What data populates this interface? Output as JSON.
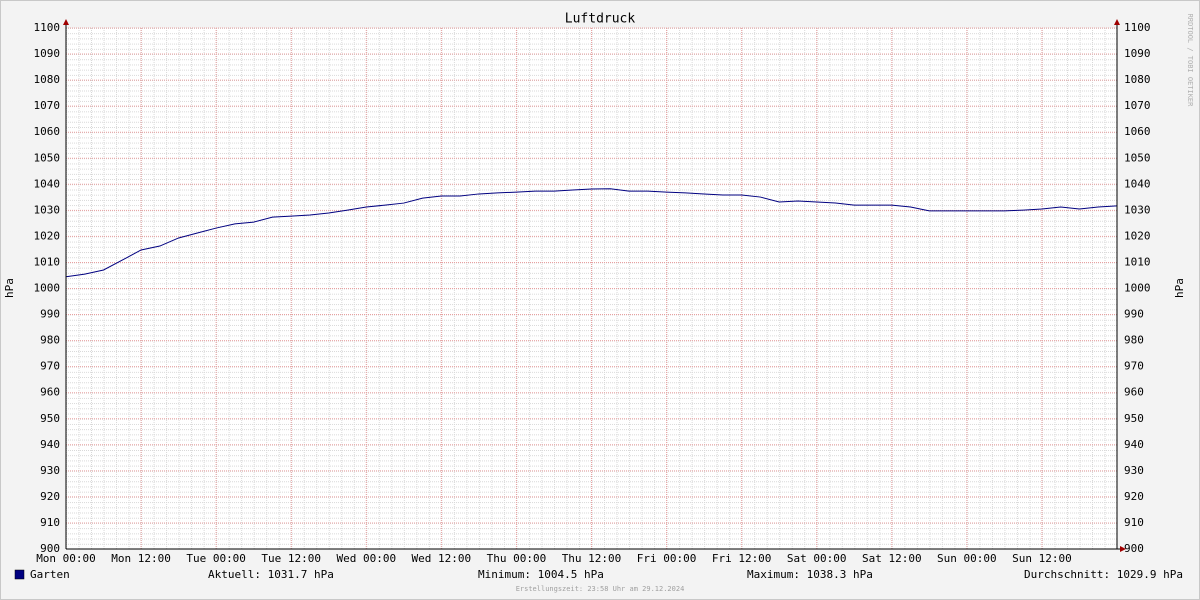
{
  "chart_data": {
    "type": "line",
    "title": "Luftdruck",
    "y_label": "hPa",
    "y2_label": "hPa",
    "x": [
      0,
      3,
      6,
      9,
      12,
      15,
      18,
      21,
      24,
      27,
      30,
      33,
      36,
      39,
      42,
      45,
      48,
      51,
      54,
      57,
      60,
      63,
      66,
      69,
      72,
      75,
      78,
      81,
      84,
      87,
      90,
      93,
      96,
      99,
      102,
      105,
      108,
      111,
      114,
      117,
      120,
      123,
      126,
      129,
      132,
      135,
      138,
      141,
      144,
      147,
      150,
      153,
      156,
      159,
      162,
      165,
      168
    ],
    "series": [
      {
        "name": "Garten",
        "color": "#000080",
        "values": [
          1004.5,
          1005.5,
          1007.1,
          1010.9,
          1014.8,
          1016.3,
          1019.4,
          1021.3,
          1023.2,
          1024.8,
          1025.5,
          1027.4,
          1027.8,
          1028.2,
          1029,
          1030.1,
          1031.3,
          1032,
          1032.8,
          1034.7,
          1035.5,
          1035.5,
          1036.3,
          1036.7,
          1037,
          1037.4,
          1037.4,
          1037.8,
          1038.2,
          1038.3,
          1037.4,
          1037.4,
          1037,
          1036.7,
          1036.3,
          1035.9,
          1035.9,
          1035.1,
          1033.2,
          1033.6,
          1033.2,
          1032.8,
          1032,
          1032,
          1032,
          1031.3,
          1029.8,
          1029.8,
          1029.8,
          1029.8,
          1029.8,
          1030.1,
          1030.5,
          1031.3,
          1030.5,
          1031.3,
          1031.7
        ]
      }
    ],
    "xlim": [
      0,
      168
    ],
    "xticks": [
      {
        "value": 0,
        "label": "Mon 00:00"
      },
      {
        "value": 12,
        "label": "Mon 12:00"
      },
      {
        "value": 24,
        "label": "Tue 00:00"
      },
      {
        "value": 36,
        "label": "Tue 12:00"
      },
      {
        "value": 48,
        "label": "Wed 00:00"
      },
      {
        "value": 60,
        "label": "Wed 12:00"
      },
      {
        "value": 72,
        "label": "Thu 00:00"
      },
      {
        "value": 84,
        "label": "Thu 12:00"
      },
      {
        "value": 96,
        "label": "Fri 00:00"
      },
      {
        "value": 108,
        "label": "Fri 12:00"
      },
      {
        "value": 120,
        "label": "Sat 00:00"
      },
      {
        "value": 132,
        "label": "Sat 12:00"
      },
      {
        "value": 144,
        "label": "Sun 00:00"
      },
      {
        "value": 156,
        "label": "Sun 12:00"
      }
    ],
    "ylim": [
      900,
      1100
    ],
    "yticks": [
      900,
      910,
      920,
      930,
      940,
      950,
      960,
      970,
      980,
      990,
      1000,
      1010,
      1020,
      1030,
      1040,
      1050,
      1060,
      1070,
      1080,
      1090,
      1100
    ],
    "grid": true,
    "grid_color": "#e8a0a0",
    "stats": [
      "Aktuell: 1031.7 hPa",
      "Minimum: 1004.5 hPa",
      "Maximum: 1038.3 hPa",
      "Durchschnitt: 1029.9 hPa"
    ],
    "footer": "Erstellungszeit: 23:58 Uhr am 29.12.2024",
    "watermark": "RRDTOOL / TOBI OETIKER"
  }
}
